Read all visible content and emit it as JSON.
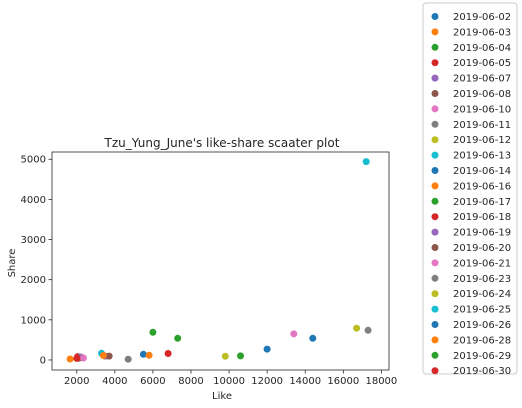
{
  "chart_data": {
    "type": "scatter",
    "title": "Tzu_Yung_June's like-share scaater plot",
    "xlabel": "Like",
    "ylabel": "Share",
    "xlim": [
      700,
      18400
    ],
    "ylim": [
      -250,
      5180
    ],
    "xticks": [
      2000,
      4000,
      6000,
      8000,
      10000,
      12000,
      14000,
      16000,
      18000
    ],
    "yticks": [
      0,
      1000,
      2000,
      3000,
      4000,
      5000
    ],
    "grid": false,
    "legend_position": "outside-right",
    "series": [
      {
        "name": "2019-06-02",
        "color": "#1f77b4",
        "points": [
          [
            2150,
            60
          ]
        ]
      },
      {
        "name": "2019-06-03",
        "color": "#ff7f0e",
        "points": [
          [
            1650,
            25
          ]
        ]
      },
      {
        "name": "2019-06-04",
        "color": "#2ca02c",
        "points": [
          [
            2300,
            55
          ]
        ]
      },
      {
        "name": "2019-06-05",
        "color": "#d62728",
        "points": [
          [
            2050,
            85
          ]
        ]
      },
      {
        "name": "2019-06-07",
        "color": "#9467bd",
        "points": [
          [
            2200,
            75
          ]
        ]
      },
      {
        "name": "2019-06-08",
        "color": "#8c564b",
        "points": [
          [
            2100,
            45
          ]
        ]
      },
      {
        "name": "2019-06-10",
        "color": "#e377c2",
        "points": [
          [
            2350,
            50
          ]
        ]
      },
      {
        "name": "2019-06-11",
        "color": "#7f7f7f",
        "points": [
          [
            4700,
            20
          ]
        ]
      },
      {
        "name": "2019-06-12",
        "color": "#bcbd22",
        "points": [
          [
            9800,
            90
          ]
        ]
      },
      {
        "name": "2019-06-13",
        "color": "#17becf",
        "points": [
          [
            3300,
            165
          ]
        ]
      },
      {
        "name": "2019-06-14",
        "color": "#1f77b4",
        "points": [
          [
            5500,
            140
          ]
        ]
      },
      {
        "name": "2019-06-16",
        "color": "#ff7f0e",
        "points": [
          [
            5800,
            115
          ]
        ]
      },
      {
        "name": "2019-06-17",
        "color": "#2ca02c",
        "points": [
          [
            7300,
            540
          ]
        ]
      },
      {
        "name": "2019-06-18",
        "color": "#d62728",
        "points": [
          [
            6800,
            160
          ]
        ]
      },
      {
        "name": "2019-06-19",
        "color": "#9467bd",
        "points": [
          [
            3500,
            95
          ]
        ]
      },
      {
        "name": "2019-06-20",
        "color": "#8c564b",
        "points": [
          [
            3700,
            95
          ]
        ]
      },
      {
        "name": "2019-06-21",
        "color": "#e377c2",
        "points": [
          [
            13400,
            650
          ]
        ]
      },
      {
        "name": "2019-06-23",
        "color": "#7f7f7f",
        "points": [
          [
            17300,
            740
          ]
        ]
      },
      {
        "name": "2019-06-24",
        "color": "#bcbd22",
        "points": [
          [
            16700,
            790
          ]
        ]
      },
      {
        "name": "2019-06-25",
        "color": "#17becf",
        "points": [
          [
            17200,
            4940
          ]
        ]
      },
      {
        "name": "2019-06-26",
        "color": "#1f77b4",
        "points": [
          [
            12000,
            270
          ],
          [
            14400,
            540
          ]
        ]
      },
      {
        "name": "2019-06-28",
        "color": "#ff7f0e",
        "points": [
          [
            3400,
            110
          ]
        ]
      },
      {
        "name": "2019-06-29",
        "color": "#2ca02c",
        "points": [
          [
            6000,
            690
          ],
          [
            10600,
            100
          ]
        ]
      },
      {
        "name": "2019-06-30",
        "color": "#d62728",
        "points": [
          [
            2000,
            40
          ]
        ]
      }
    ]
  }
}
